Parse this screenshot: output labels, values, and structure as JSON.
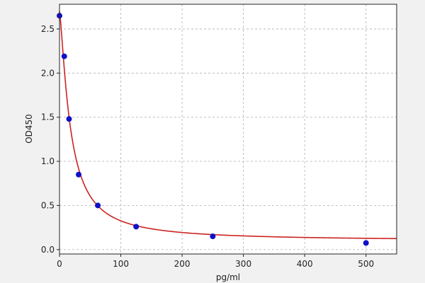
{
  "chart_data": {
    "type": "scatter",
    "title": "",
    "xlabel": "pg/ml",
    "ylabel": "OD450",
    "xlim": [
      0,
      550
    ],
    "ylim": [
      -0.05,
      2.78
    ],
    "x_ticks": [
      0,
      100,
      200,
      300,
      400,
      500
    ],
    "x_tick_labels": [
      "0",
      "100",
      "200",
      "300",
      "400",
      "500"
    ],
    "y_ticks": [
      0.0,
      0.5,
      1.0,
      1.5,
      2.0,
      2.5
    ],
    "y_tick_labels": [
      "0.0",
      "0.5",
      "1.0",
      "1.5",
      "2.0",
      "2.5"
    ],
    "grid": true,
    "legend": "none",
    "series": [
      {
        "kind": "points",
        "x": [
          0,
          7.8,
          15.6,
          31.25,
          62.5,
          125,
          250,
          500
        ],
        "y": [
          2.65,
          2.19,
          1.48,
          0.85,
          0.5,
          0.26,
          0.15,
          0.075
        ],
        "color": "#1010c8"
      },
      {
        "kind": "fitted-curve",
        "model": "4PL",
        "params": {
          "A": 2.7,
          "B": 1.35,
          "C": 17.5,
          "D": 0.1
        },
        "color": "#cc2222"
      }
    ]
  },
  "colors": {
    "page_background": "#f1f1f1",
    "plot_background": "#ffffff",
    "grid": "#b0b0b0",
    "points": "#1010c8",
    "curve": "#cc2222",
    "axis": "#222222"
  }
}
